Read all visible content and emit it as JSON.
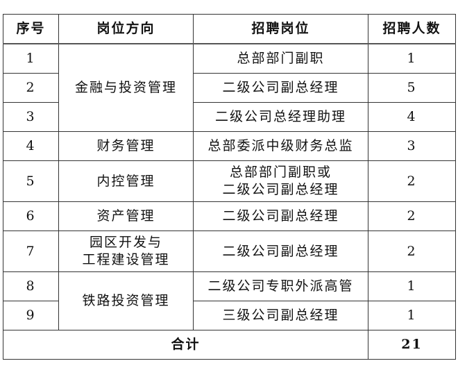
{
  "headers": [
    "序号",
    "岗位方向",
    "招聘岗位",
    "招聘人数"
  ],
  "rows": [
    {
      "no": "1",
      "direction": "金融与投资管理",
      "position": "总部部门副职",
      "count": "1"
    },
    {
      "no": "2",
      "position": "二级公司副总经理",
      "count": "5"
    },
    {
      "no": "3",
      "position": "二级公司总经理助理",
      "count": "4"
    },
    {
      "no": "4",
      "direction": "财务管理",
      "position": "总部委派中级财务总监",
      "count": "3"
    },
    {
      "no": "5",
      "direction": "内控管理",
      "position_line1": "总部部门副职或",
      "position_line2": "二级公司副总经理",
      "count": "2"
    },
    {
      "no": "6",
      "direction": "资产管理",
      "position": "二级公司副总经理",
      "count": "2"
    },
    {
      "no": "7",
      "direction_line1": "园区开发与",
      "direction_line2": "工程建设管理",
      "position": "二级公司副总经理",
      "count": "2"
    },
    {
      "no": "8",
      "direction": "铁路投资管理",
      "position": "二级公司专职外派高管",
      "count": "1"
    },
    {
      "no": "9",
      "position": "三级公司副总经理",
      "count": "1"
    }
  ],
  "total": {
    "label": "合计",
    "count": "21"
  }
}
